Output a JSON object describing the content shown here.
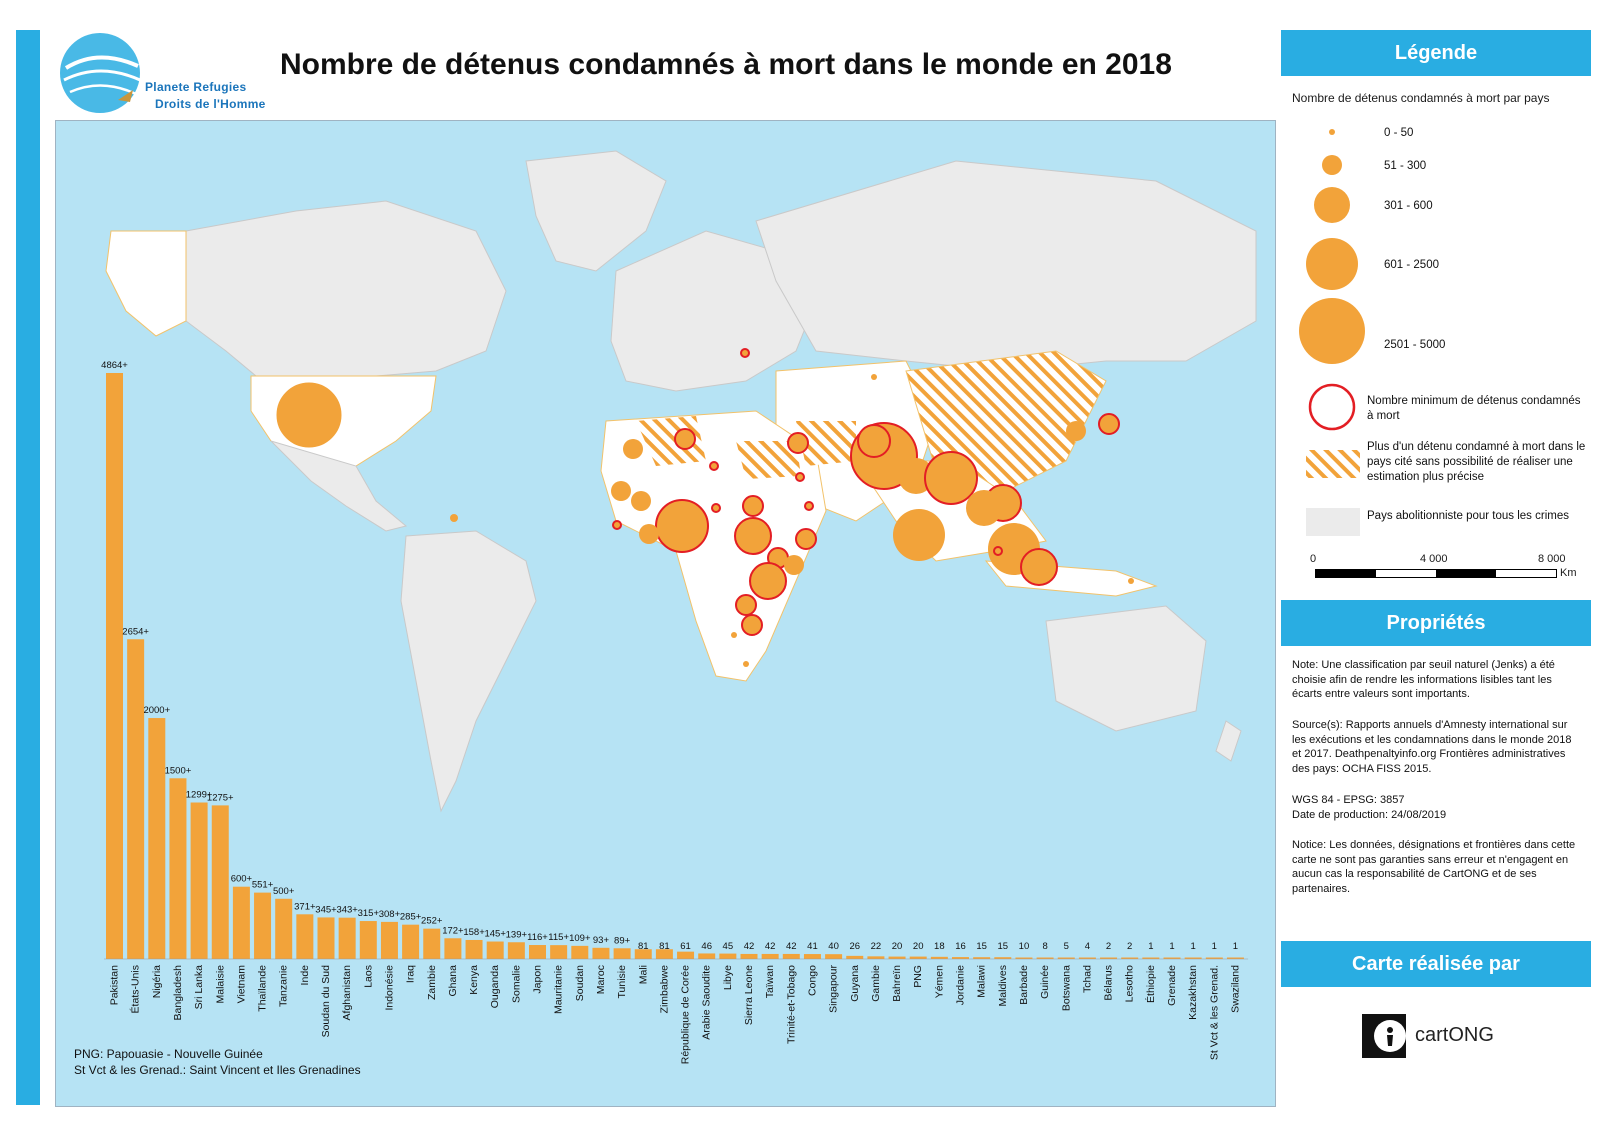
{
  "title": "Nombre de détenus condamnés à mort dans le monde en 2018",
  "logo": {
    "line1": "Planete Refugies",
    "line2": "Droits de l'Homme"
  },
  "notes": [
    "PNG: Papouasie - Nouvelle Guinée",
    "St Vct & les Grenad.: Saint Vincent et Iles Grenadines"
  ],
  "legend": {
    "heading": "Légende",
    "subtitle": "Nombre de détenus condamnés à mort par pays",
    "classes": [
      {
        "label": "0 - 50",
        "radius": 3
      },
      {
        "label": "51 - 300",
        "radius": 10
      },
      {
        "label": "301 - 600",
        "radius": 18
      },
      {
        "label": "601 - 2500",
        "radius": 26
      },
      {
        "label": "2501 - 5000",
        "radius": 33
      }
    ],
    "minimum": "Nombre minimum de détenus condamnés à mort",
    "hatch": "Plus d'un détenu condamné à mort dans le pays cité sans possibilité de réaliser une estimation plus précise",
    "abolition": "Pays abolitionniste pour tous les crimes",
    "scale": {
      "labels": [
        "0",
        "4 000",
        "8 000"
      ],
      "unit": "Km"
    }
  },
  "properties": {
    "heading": "Propriétés",
    "note": "Note: Une classification par seuil naturel (Jenks) a été choisie afin de rendre les informations lisibles tant les écarts entre valeurs sont importants.",
    "sources": "Source(s): Rapports annuels d'Amnesty international sur les exécutions et les condamnations dans le monde 2018 et 2017. Deathpenaltyinfo.org Frontières administratives des pays: OCHA FISS 2015.",
    "projection": "WGS 84 - EPSG: 3857",
    "date": "Date de production: 24/08/2019",
    "notice": "Notice: Les données, désignations et frontières dans cette carte ne sont pas garanties sans erreur et n'engagent en aucun cas la responsabilité de CartONG et de ses partenaires."
  },
  "credit": {
    "heading": "Carte réalisée par",
    "org": "cartONG"
  },
  "colors": {
    "accent": "#29ade2",
    "orange": "#f2a33a",
    "red": "#e31e24",
    "sea": "#b6e3f4",
    "land": "#ffffff",
    "abolition": "#ebebeb"
  },
  "chart_data": {
    "type": "bar",
    "categories": [
      "Pakistan",
      "États-Unis",
      "Nigéria",
      "Bangladesh",
      "Sri Lanka",
      "Malaisie",
      "Vietnam",
      "Thaïlande",
      "Tanzanie",
      "Inde",
      "Soudan du Sud",
      "Afghanistan",
      "Laos",
      "Indonésie",
      "Iraq",
      "Zambie",
      "Ghana",
      "Kenya",
      "Ouganda",
      "Somalie",
      "Japon",
      "Mauritanie",
      "Soudan",
      "Maroc",
      "Tunisie",
      "Mali",
      "Zimbabwe",
      "République de Corée",
      "Arabie Saoudite",
      "Libye",
      "Sierra Leone",
      "Taïwan",
      "Trinité-et-Tobago",
      "Congo",
      "Singapour",
      "Guyana",
      "Gambie",
      "Bahreïn",
      "PNG",
      "Yémen",
      "Jordanie",
      "Malawi",
      "Maldives",
      "Barbade",
      "Guinée",
      "Botswana",
      "Tchad",
      "Bélarus",
      "Lesotho",
      "Éthiopie",
      "Grenade",
      "Kazakhstan",
      "St Vct & les Grenad.",
      "Swaziland"
    ],
    "values": [
      4864,
      2654,
      2000,
      1500,
      1299,
      1275,
      600,
      551,
      500,
      371,
      345,
      343,
      315,
      308,
      285,
      252,
      172,
      158,
      145,
      139,
      116,
      115,
      109,
      93,
      89,
      81,
      81,
      61,
      46,
      45,
      42,
      42,
      42,
      41,
      40,
      26,
      22,
      20,
      20,
      18,
      16,
      15,
      15,
      10,
      8,
      5,
      4,
      2,
      2,
      1,
      1,
      1,
      1,
      1
    ],
    "value_labels": [
      "4864+",
      "2654+",
      "2000+",
      "1500+",
      "1299+",
      "1275+",
      "600+",
      "551+",
      "500+",
      "371+",
      "345+",
      "343+",
      "315+",
      "308+",
      "285+",
      "252+",
      "172+",
      "158+",
      "145+",
      "139+",
      "116+",
      "115+",
      "109+",
      "93+",
      "89+",
      "81",
      "81",
      "61",
      "46",
      "45",
      "42",
      "42",
      "42",
      "41",
      "40",
      "26",
      "22",
      "20",
      "20",
      "18",
      "16",
      "15",
      "15",
      "10",
      "8",
      "5",
      "4",
      "2",
      "2",
      "1",
      "1",
      "1",
      "1",
      "1"
    ]
  }
}
